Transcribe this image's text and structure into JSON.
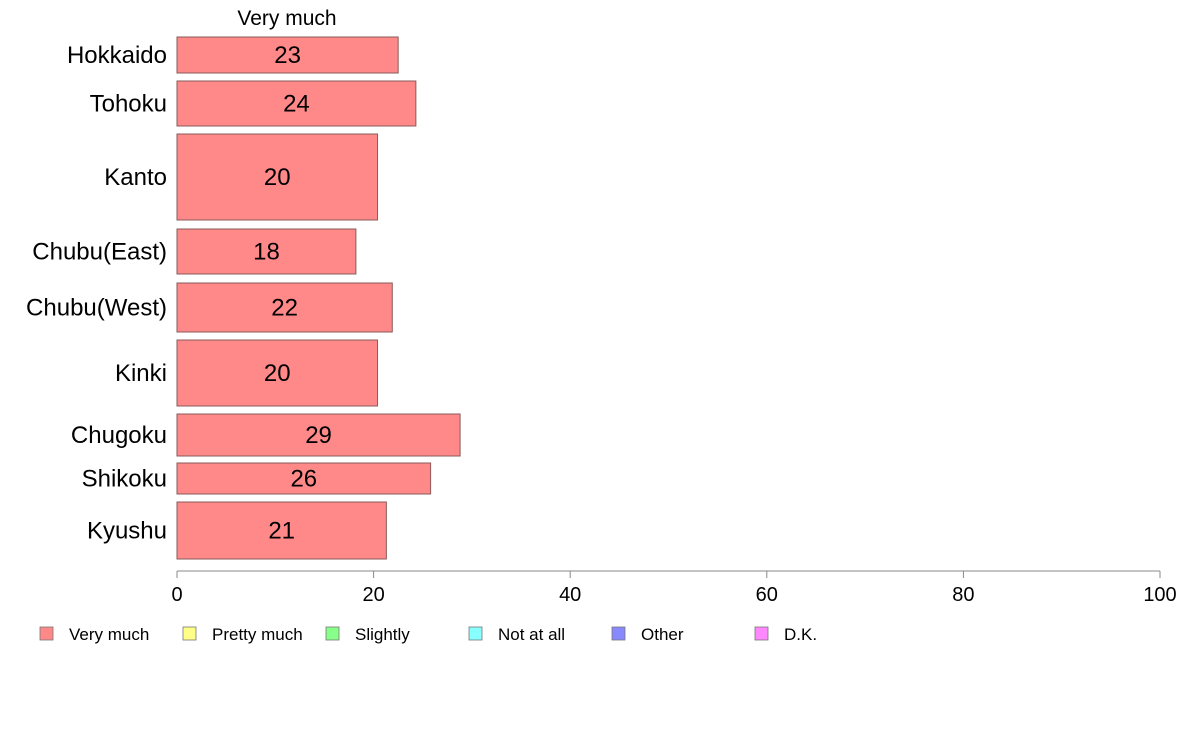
{
  "chart_data": {
    "type": "bar",
    "orientation": "horizontal",
    "column_header": "Very much",
    "categories": [
      "Hokkaido",
      "Tohoku",
      "Kanto",
      "Chubu(East)",
      "Chubu(West)",
      "Kinki",
      "Chugoku",
      "Shikoku",
      "Kyushu"
    ],
    "series": [
      {
        "name": "Very much",
        "color": "#ff8888",
        "values": [
          22.5,
          24.3,
          20.4,
          18.2,
          21.9,
          20.4,
          28.8,
          25.8,
          21.3
        ]
      }
    ],
    "data_labels": [
      "23",
      "24",
      "20",
      "18",
      "22",
      "20",
      "29",
      "26",
      "21"
    ],
    "xlim": [
      0,
      100
    ],
    "xticks": [
      0,
      20,
      40,
      60,
      80,
      100
    ],
    "grid": false,
    "legend": {
      "position": "bottom",
      "entries": [
        {
          "label": "Very much",
          "color": "#ff8888"
        },
        {
          "label": "Pretty much",
          "color": "#ffff88"
        },
        {
          "label": "Slightly",
          "color": "#88ff88"
        },
        {
          "label": "Not at all",
          "color": "#88ffff"
        },
        {
          "label": "Other",
          "color": "#8888ff"
        },
        {
          "label": "D.K.",
          "color": "#ff88ff"
        }
      ]
    }
  }
}
